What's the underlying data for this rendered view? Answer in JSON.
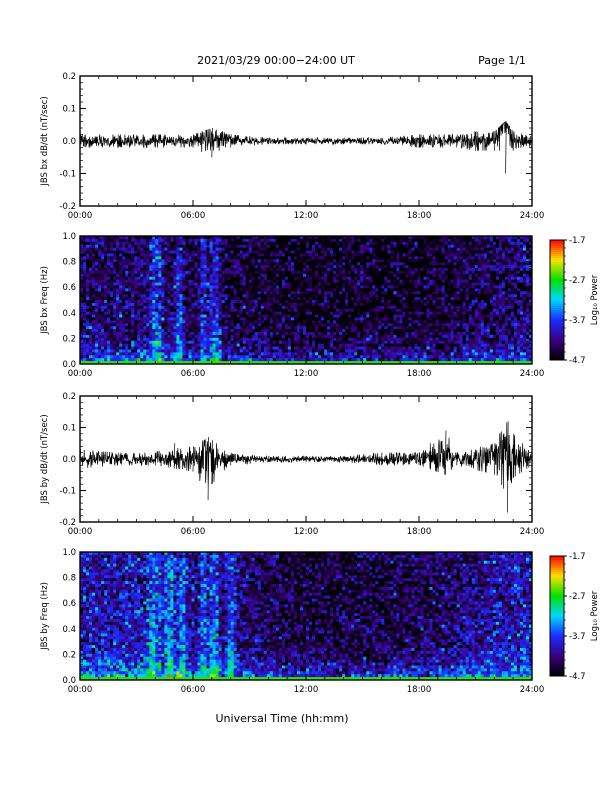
{
  "header": {
    "title": "2021/03/29   00:00−24:00 UT",
    "page": "Page 1/1"
  },
  "xlabel": "Universal Time (hh:mm)",
  "colorbar": {
    "label": "Log₁₀ Power",
    "ticks": [
      "-1.7",
      "-2.7",
      "-3.7",
      "-4.7"
    ]
  },
  "chart_data": [
    {
      "type": "line",
      "ylabel": "JBS bx dB/dt (nT/sec)",
      "xlim": [
        0,
        24
      ],
      "ylim": [
        -0.2,
        0.2
      ],
      "yticks": [
        "0.2",
        "0.1",
        "0.0",
        "-0.1",
        "-0.2"
      ],
      "xticks": [
        "00:00",
        "06:00",
        "12:00",
        "18:00",
        "24:00"
      ],
      "x": [
        0,
        2,
        4,
        6,
        7,
        8,
        10,
        12,
        14,
        16,
        18,
        20,
        21,
        22,
        22.6,
        23,
        24
      ],
      "y": [
        0.0,
        0.0,
        0.0,
        0.0,
        0.01,
        0.0,
        0.0,
        0.0,
        0.0,
        0.0,
        0.0,
        0.0,
        0.0,
        0.0,
        0.06,
        0.0,
        0.0
      ],
      "ymin": [
        -0.02,
        -0.02,
        -0.02,
        -0.02,
        -0.05,
        -0.02,
        -0.01,
        -0.01,
        -0.01,
        -0.01,
        -0.02,
        -0.02,
        -0.03,
        -0.03,
        -0.1,
        -0.03,
        -0.02
      ],
      "ymax": [
        0.02,
        0.02,
        0.02,
        0.02,
        0.04,
        0.02,
        0.01,
        0.01,
        0.01,
        0.01,
        0.02,
        0.02,
        0.03,
        0.03,
        0.06,
        0.03,
        0.02
      ]
    },
    {
      "type": "heatmap",
      "ylabel": "JBS bx Freq (Hz)",
      "xlim": [
        0,
        24
      ],
      "ylim": [
        0.0,
        1.0
      ],
      "yticks": [
        "1.0",
        "0.8",
        "0.6",
        "0.4",
        "0.2",
        "0.0"
      ],
      "xticks": [
        "00:00",
        "06:00",
        "12:00",
        "18:00",
        "24:00"
      ],
      "zlim": [
        -4.7,
        -1.7
      ],
      "colorscale": [
        "#000000",
        "#3a0080",
        "#1a2cff",
        "#00d8ff",
        "#00e000",
        "#ffe000",
        "#ff0000"
      ],
      "bright_bands_hr": [
        4.1,
        5.3,
        6.6,
        7.0,
        7.2
      ],
      "background_level_log10": [
        -4.3,
        -4.3,
        -4.3,
        -4.5,
        -4.5,
        -4.6,
        -4.6,
        -4.6,
        -4.6,
        -4.5,
        -4.4,
        -4.3
      ]
    },
    {
      "type": "line",
      "ylabel": "JBS by dB/dt (nT/sec)",
      "xlim": [
        0,
        24
      ],
      "ylim": [
        -0.2,
        0.2
      ],
      "yticks": [
        "0.2",
        "0.1",
        "0.0",
        "-0.1",
        "-0.2"
      ],
      "xticks": [
        "00:00",
        "06:00",
        "12:00",
        "18:00",
        "24:00"
      ],
      "x": [
        0,
        2,
        4,
        5,
        6,
        6.8,
        7,
        8,
        10,
        12,
        14,
        16,
        18,
        19.4,
        20,
        22,
        22.7,
        23,
        24
      ],
      "y": [
        0.0,
        0.0,
        0.0,
        0.0,
        0.0,
        0.0,
        0.0,
        0.0,
        0.0,
        0.0,
        0.0,
        0.0,
        0.0,
        0.0,
        0.0,
        0.0,
        0.0,
        0.0,
        0.0
      ],
      "ymin": [
        -0.03,
        -0.02,
        -0.02,
        -0.03,
        -0.04,
        -0.13,
        -0.08,
        -0.02,
        -0.01,
        -0.01,
        -0.01,
        -0.02,
        -0.02,
        -0.05,
        -0.02,
        -0.05,
        -0.17,
        -0.06,
        -0.02
      ],
      "ymax": [
        0.03,
        0.02,
        0.02,
        0.05,
        0.04,
        0.07,
        0.06,
        0.02,
        0.01,
        0.01,
        0.01,
        0.02,
        0.02,
        0.09,
        0.02,
        0.05,
        0.12,
        0.08,
        0.02
      ]
    },
    {
      "type": "heatmap",
      "ylabel": "JBS by Freq (Hz)",
      "xlim": [
        0,
        24
      ],
      "ylim": [
        0.0,
        1.0
      ],
      "yticks": [
        "1.0",
        "0.8",
        "0.6",
        "0.4",
        "0.2",
        "0.0"
      ],
      "xticks": [
        "00:00",
        "06:00",
        "12:00",
        "18:00",
        "24:00"
      ],
      "zlim": [
        -4.7,
        -1.7
      ],
      "colorscale": [
        "#000000",
        "#3a0080",
        "#1a2cff",
        "#00d8ff",
        "#00e000",
        "#ffe000",
        "#ff0000"
      ],
      "bright_bands_hr": [
        3.9,
        4.8,
        5.4,
        6.6,
        7.0,
        7.2,
        8.0
      ],
      "background_level_log10": [
        -4.0,
        -4.0,
        -4.0,
        -4.2,
        -4.3,
        -4.5,
        -4.5,
        -4.5,
        -4.4,
        -4.3,
        -4.1,
        -4.0
      ]
    }
  ]
}
